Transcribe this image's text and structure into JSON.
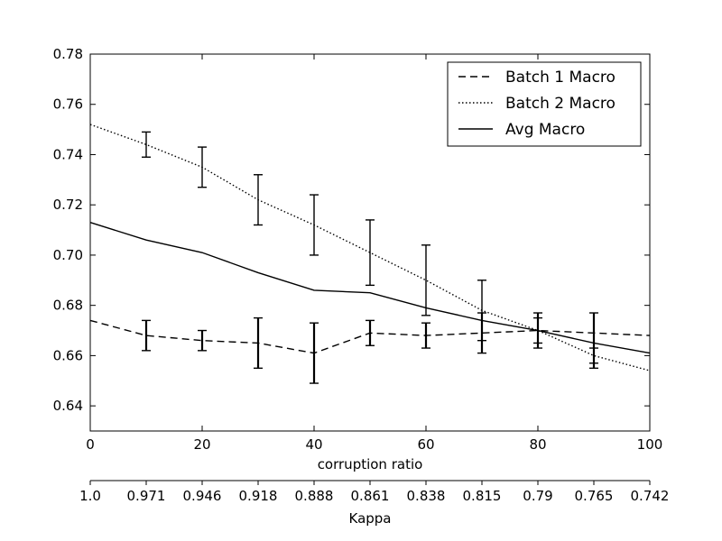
{
  "chart_data": {
    "type": "line",
    "title": "",
    "xlabel": "corruption ratio",
    "ylabel": "",
    "xlim": [
      0,
      100
    ],
    "ylim": [
      0.63,
      0.78
    ],
    "xticks": [
      0,
      20,
      40,
      60,
      80,
      100
    ],
    "yticks": [
      0.64,
      0.66,
      0.68,
      0.7,
      0.72,
      0.74,
      0.76,
      0.78
    ],
    "ytick_labels": [
      "0.64",
      "0.66",
      "0.68",
      "0.70",
      "0.72",
      "0.74",
      "0.76",
      "0.78"
    ],
    "secondary_xaxis": {
      "label": "Kappa",
      "positions": [
        0,
        10,
        20,
        30,
        40,
        50,
        60,
        70,
        80,
        90,
        100
      ],
      "tick_labels": [
        "1.0",
        "0.971",
        "0.946",
        "0.918",
        "0.888",
        "0.861",
        "0.838",
        "0.815",
        "0.79",
        "0.765",
        "0.742"
      ]
    },
    "grid": false,
    "legend_position": "top-right",
    "series": [
      {
        "name": "Batch 1 Macro",
        "style": "dashed",
        "x": [
          0,
          10,
          20,
          30,
          40,
          50,
          60,
          70,
          80,
          90,
          100
        ],
        "y": [
          0.674,
          0.668,
          0.666,
          0.665,
          0.661,
          0.669,
          0.668,
          0.669,
          0.67,
          0.669,
          0.668
        ],
        "errorbars": [
          {
            "x": 10,
            "low": 0.662,
            "high": 0.674
          },
          {
            "x": 20,
            "low": 0.662,
            "high": 0.67
          },
          {
            "x": 30,
            "low": 0.655,
            "high": 0.675
          },
          {
            "x": 40,
            "low": 0.649,
            "high": 0.673
          },
          {
            "x": 50,
            "low": 0.664,
            "high": 0.674
          },
          {
            "x": 60,
            "low": 0.663,
            "high": 0.673
          },
          {
            "x": 70,
            "low": 0.661,
            "high": 0.677
          },
          {
            "x": 80,
            "low": 0.663,
            "high": 0.677
          },
          {
            "x": 90,
            "low": 0.655,
            "high": 0.677
          }
        ]
      },
      {
        "name": "Batch 2 Macro",
        "style": "dotted",
        "x": [
          0,
          10,
          20,
          30,
          40,
          50,
          60,
          70,
          80,
          90,
          100
        ],
        "y": [
          0.752,
          0.744,
          0.735,
          0.722,
          0.712,
          0.701,
          0.69,
          0.678,
          0.67,
          0.66,
          0.654
        ],
        "errorbars": [
          {
            "x": 10,
            "low": 0.739,
            "high": 0.749
          },
          {
            "x": 20,
            "low": 0.727,
            "high": 0.743
          },
          {
            "x": 30,
            "low": 0.712,
            "high": 0.732
          },
          {
            "x": 40,
            "low": 0.7,
            "high": 0.724
          },
          {
            "x": 50,
            "low": 0.688,
            "high": 0.714
          },
          {
            "x": 60,
            "low": 0.676,
            "high": 0.704
          },
          {
            "x": 70,
            "low": 0.666,
            "high": 0.69
          },
          {
            "x": 80,
            "low": 0.665,
            "high": 0.675
          },
          {
            "x": 90,
            "low": 0.657,
            "high": 0.663
          }
        ]
      },
      {
        "name": "Avg Macro",
        "style": "solid",
        "x": [
          0,
          10,
          20,
          30,
          40,
          50,
          60,
          70,
          80,
          90,
          100
        ],
        "y": [
          0.713,
          0.706,
          0.701,
          0.693,
          0.686,
          0.685,
          0.679,
          0.674,
          0.67,
          0.665,
          0.661
        ],
        "errorbars": []
      }
    ]
  }
}
